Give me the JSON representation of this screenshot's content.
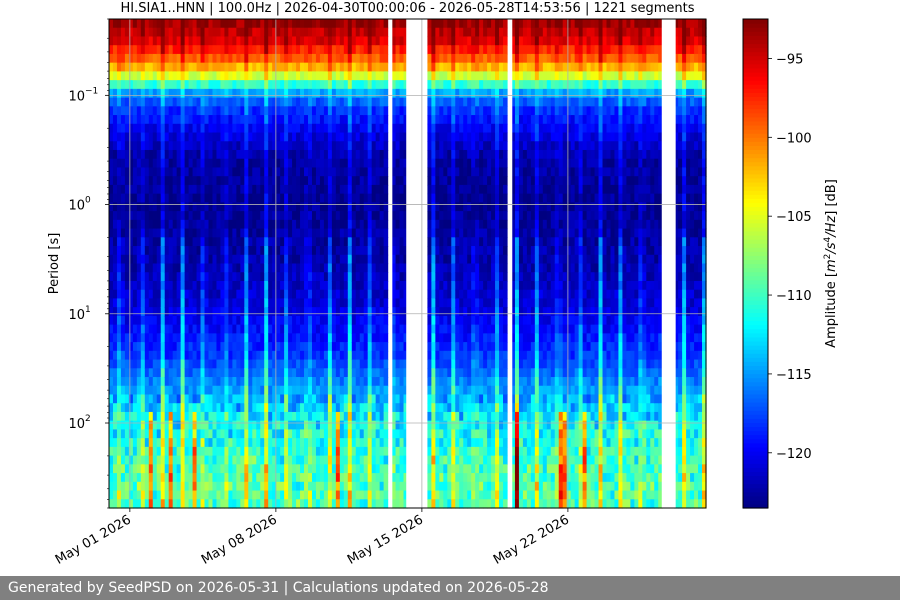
{
  "chart_data": {
    "type": "heatmap",
    "title": "HI.SIA1..HNN | 100.0Hz | 2026-04-30T00:00:06 - 2026-05-28T14:53:56 | 1221 segments",
    "xlabel": "",
    "ylabel": "Period [s]",
    "x_tick_labels": [
      "May 01 2026",
      "May 08 2026",
      "May 15 2026",
      "May 22 2026"
    ],
    "x_ticks_dates": [
      "2026-05-01",
      "2026-05-08",
      "2026-05-15",
      "2026-05-22"
    ],
    "x_range": [
      "2026-04-30T00:00:06",
      "2026-05-28T14:53:56"
    ],
    "y_scale": "log",
    "y_inverted": true,
    "y_ticks": [
      0.1,
      1,
      10,
      100
    ],
    "y_tick_labels": [
      {
        "base": "10",
        "exp": "−1"
      },
      {
        "base": "10",
        "exp": "0"
      },
      {
        "base": "10",
        "exp": "1"
      },
      {
        "base": "10",
        "exp": "2"
      }
    ],
    "y_range": [
      0.02,
      600
    ],
    "grid": true,
    "colormap": "jet",
    "colorbar": {
      "label": "Amplitude [m²/s⁴/Hz] [dB]",
      "label_main": "Amplitude [",
      "label_unit": "m",
      "label_tail": "/Hz] [dB]",
      "range": [
        -123.5,
        -92.5
      ],
      "ticks": [
        -95,
        -100,
        -105,
        -110,
        -115,
        -120
      ],
      "tick_labels": [
        "−95",
        "−100",
        "−105",
        "−110",
        "−115",
        "−120"
      ]
    },
    "segments": 1221,
    "sampling_rate_hz": 100.0,
    "data_gaps": [
      [
        "2026-05-13T10:00:00",
        "2026-05-13T14:00:00"
      ],
      [
        "2026-05-14T06:00:00",
        "2026-05-15T06:00:00"
      ],
      [
        "2026-05-19T04:00:00",
        "2026-05-19T08:00:00"
      ],
      [
        "2026-05-26T12:00:00",
        "2026-05-27T04:00:00"
      ]
    ]
  },
  "footer": {
    "text": "Generated by SeedPSD on 2026-05-31 | Calculations updated on 2026-05-28"
  }
}
